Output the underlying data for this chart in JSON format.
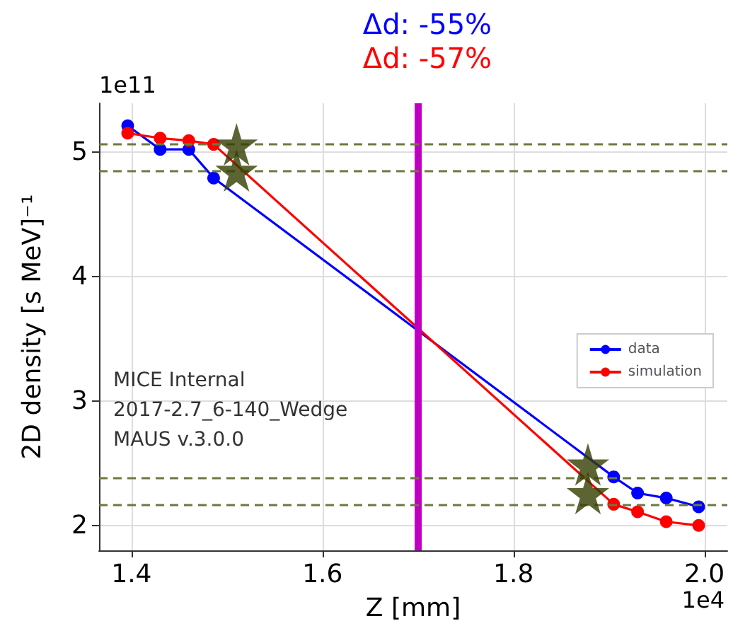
{
  "chart_data": {
    "type": "line",
    "title": "Δd: -55%",
    "subtitle": "Δd: -57%",
    "xlabel": "Z [mm]",
    "ylabel": "2D density [s MeV]⁻¹",
    "annotations": [
      "MICE Internal",
      "2017-2.7_6-140_Wedge",
      "MAUS v.3.0.0",
      "1e11",
      "1e4"
    ],
    "series": [
      {
        "name": "data",
        "color": "#0000ff",
        "x": [
          1.396,
          1.43,
          1.46,
          1.486,
          1.905,
          1.93,
          1.96,
          1.994
        ],
        "values": [
          5.21,
          5.02,
          5.02,
          4.79,
          2.39,
          2.26,
          2.22,
          2.15
        ]
      },
      {
        "name": "simulation",
        "color": "#ff0000",
        "x": [
          1.396,
          1.43,
          1.46,
          1.486,
          1.905,
          1.93,
          1.96,
          1.994
        ],
        "values": [
          5.15,
          5.11,
          5.09,
          5.06,
          2.17,
          2.11,
          2.03,
          2.0
        ]
      },
      {
        "type": "scatter",
        "marker": "star",
        "color": "#333d00",
        "x": [
          1.51,
          1.51,
          1.878,
          1.878
        ],
        "values": [
          5.06,
          4.85,
          2.49,
          2.26
        ]
      }
    ],
    "marker": "circle",
    "xlim": [
      1.366,
      2.024
    ],
    "xticks": [
      1.4,
      1.6,
      1.8,
      {
        "value": 2,
        "label": "2.0"
      }
    ],
    "ylim": [
      1.8,
      5.39
    ],
    "yticks": [
      2,
      3,
      4,
      5
    ],
    "ref_lines": [
      {
        "axis": "x",
        "value": 1.7,
        "color": "#c000c0",
        "line_style": "solid"
      },
      {
        "axis": "y",
        "value": 5.06,
        "color": "#6b7a3f",
        "line_style": "dashed"
      },
      {
        "axis": "y",
        "value": 4.85,
        "color": "#6b7a3f",
        "line_style": "dashed"
      },
      {
        "axis": "y",
        "value": 2.38,
        "color": "#6b7a3f",
        "line_style": "dashed"
      },
      {
        "axis": "y",
        "value": 2.17,
        "color": "#6b7a3f",
        "line_style": "dashed"
      }
    ],
    "grid": true,
    "legend": "right"
  }
}
